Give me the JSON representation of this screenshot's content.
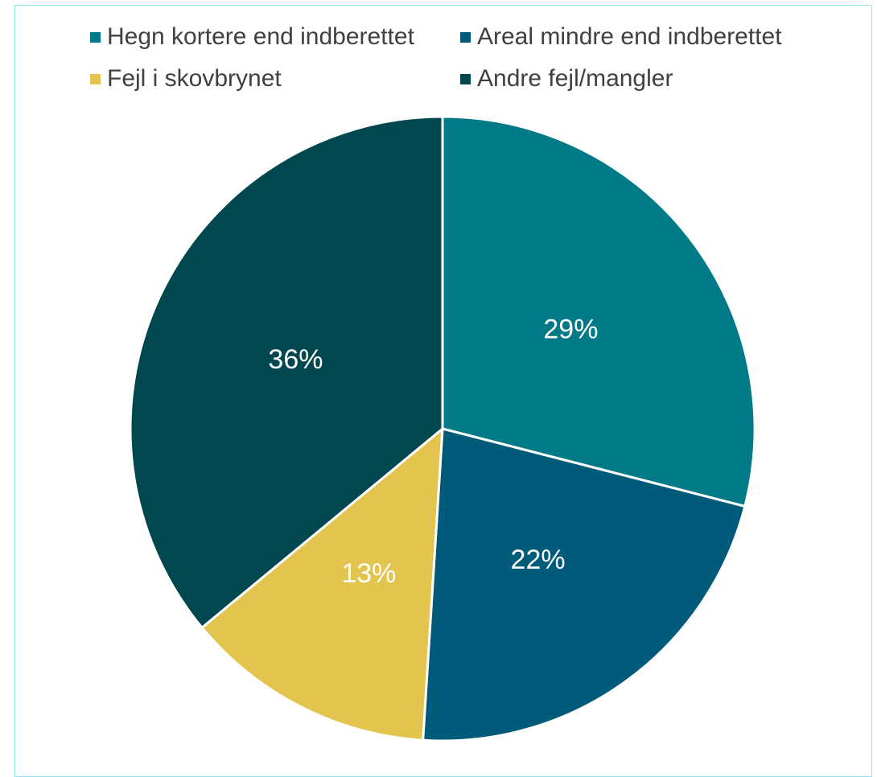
{
  "chart_data": {
    "type": "pie",
    "title": "",
    "categories": [
      "Hegn kortere end indberettet",
      "Areal mindre end indberettet",
      "Fejl i skovbrynet",
      "Andre fejl/mangler"
    ],
    "values": [
      29,
      22,
      13,
      36
    ],
    "value_labels": [
      "29%",
      "22%",
      "13%",
      "36%"
    ],
    "colors": [
      "#007a87",
      "#005a7a",
      "#e3c44e",
      "#00474f"
    ],
    "legend_position": "top",
    "start_angle": "12 o'clock, clockwise"
  },
  "legend": {
    "items": [
      {
        "label": "Hegn kortere end indberettet",
        "color": "#007a87"
      },
      {
        "label": "Areal mindre end indberettet",
        "color": "#005a7a"
      },
      {
        "label": "Fejl i skovbrynet",
        "color": "#e3c44e"
      },
      {
        "label": "Andre fejl/mangler",
        "color": "#00474f"
      }
    ]
  }
}
